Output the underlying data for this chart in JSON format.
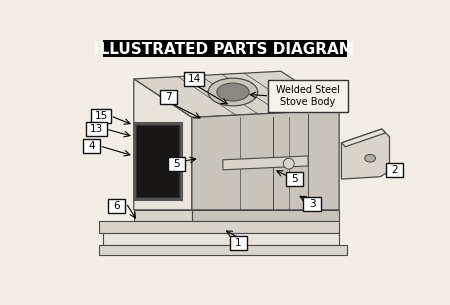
{
  "title": "ILLUSTRATED PARTS DIAGRAM",
  "title_bg": "#000000",
  "title_color": "#ffffff",
  "title_fontsize": 11,
  "bg_color": "#f2ede6",
  "label_box_color": "#ffffff",
  "label_border_color": "#111111",
  "line_color": "#4a4a4a",
  "fill_light": "#e8e4dc",
  "fill_mid": "#d8d4cc",
  "fill_dark": "#c8c4bc",
  "callout_text": "Welded Steel\nStove Body"
}
